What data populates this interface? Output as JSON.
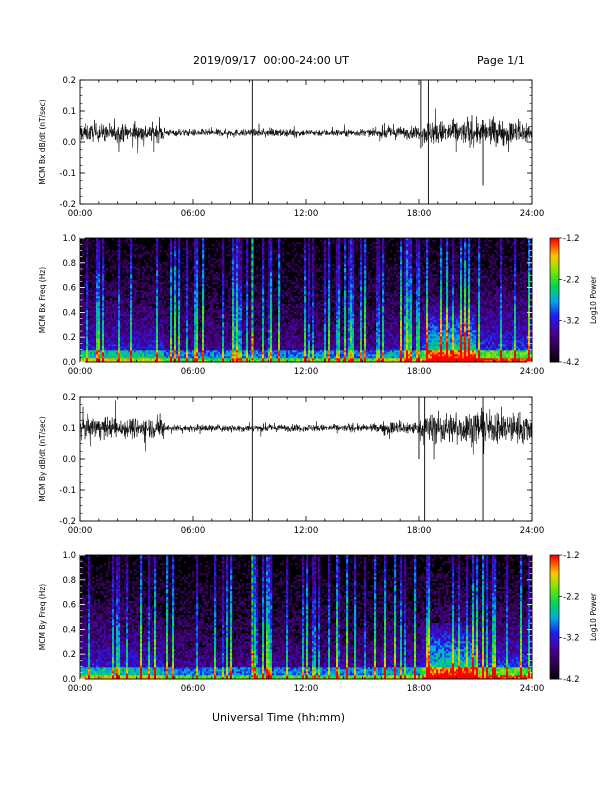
{
  "header": {
    "title": "2019/09/17  00:00-24:00 UT",
    "page": "Page 1/1"
  },
  "xaxis_title": "Universal Time (hh:mm)",
  "chart_data": [
    {
      "type": "line",
      "ylabel": "MCM Bx dB/dt (nT/sec)",
      "xlim": [
        "00:00",
        "24:00"
      ],
      "xticks": [
        "00:00",
        "06:00",
        "12:00",
        "18:00",
        "24:00"
      ],
      "ylim": [
        -0.2,
        0.2
      ],
      "yticks": [
        "-0.2",
        "-0.1",
        "0.0",
        "0.1",
        "0.2"
      ],
      "baseline": 0.03,
      "activity": [
        {
          "start_h": 0,
          "end_h": 4.5,
          "amplitude": 0.05
        },
        {
          "start_h": 4.5,
          "end_h": 16,
          "amplitude": 0.02
        },
        {
          "start_h": 16,
          "end_h": 18.2,
          "amplitude": 0.035
        },
        {
          "start_h": 18.2,
          "end_h": 24,
          "amplitude": 0.07
        }
      ],
      "spikes": [
        {
          "t_h": 9.15,
          "min": -0.2,
          "max": 0.2
        },
        {
          "t_h": 18.1,
          "min": -0.02,
          "max": 0.2
        },
        {
          "t_h": 18.5,
          "min": -0.2,
          "max": 0.2
        },
        {
          "t_h": 21.4,
          "min": -0.14,
          "max": 0.07
        }
      ]
    },
    {
      "type": "heatmap",
      "ylabel": "MCM Bx Freq (Hz)",
      "xlim": [
        "00:00",
        "24:00"
      ],
      "xticks": [
        "00:00",
        "06:00",
        "12:00",
        "18:00",
        "24:00"
      ],
      "ylim": [
        0.0,
        1.0
      ],
      "yticks": [
        "0.0",
        "0.2",
        "0.4",
        "0.6",
        "0.8",
        "1.0"
      ],
      "colorbar": {
        "label": "Log10 Power",
        "range": [
          -4.2,
          -1.2
        ],
        "ticks": [
          "-1.2",
          "-2.2",
          "-3.2",
          "-4.2"
        ]
      },
      "features": [
        {
          "description_value": "broadband enhancement",
          "t_h": 9.15,
          "power": -1.2
        },
        {
          "description_value": "low-frequency enhancement",
          "start_h": 18.5,
          "end_h": 21,
          "max_freq": 0.45,
          "power": -2.6
        }
      ]
    },
    {
      "type": "line",
      "ylabel": "MCM By dB/dt (nT/sec)",
      "xlim": [
        "00:00",
        "24:00"
      ],
      "xticks": [
        "00:00",
        "06:00",
        "12:00",
        "18:00",
        "24:00"
      ],
      "ylim": [
        -0.2,
        0.2
      ],
      "yticks": [
        "-0.2",
        "-0.1",
        "0.0",
        "0.1",
        "0.2"
      ],
      "baseline": 0.1,
      "activity": [
        {
          "start_h": 0,
          "end_h": 4.5,
          "amplitude": 0.06
        },
        {
          "start_h": 4.5,
          "end_h": 16,
          "amplitude": 0.02
        },
        {
          "start_h": 16,
          "end_h": 18.2,
          "amplitude": 0.04
        },
        {
          "start_h": 18.2,
          "end_h": 24,
          "amplitude": 0.09
        }
      ],
      "spikes": [
        {
          "t_h": 9.15,
          "min": -0.2,
          "max": 0.2
        },
        {
          "t_h": 18.0,
          "min": 0.0,
          "max": 0.2
        },
        {
          "t_h": 18.3,
          "min": -0.2,
          "max": 0.2
        },
        {
          "t_h": 21.4,
          "min": -0.2,
          "max": 0.2
        }
      ]
    },
    {
      "type": "heatmap",
      "ylabel": "MCM By Freq (Hz)",
      "xlim": [
        "00:00",
        "24:00"
      ],
      "xticks": [
        "00:00",
        "06:00",
        "12:00",
        "18:00",
        "24:00"
      ],
      "ylim": [
        0.0,
        1.0
      ],
      "yticks": [
        "0.0",
        "0.2",
        "0.4",
        "0.6",
        "0.8",
        "1.0"
      ],
      "colorbar": {
        "label": "Log10 Power",
        "range": [
          -4.2,
          -1.2
        ],
        "ticks": [
          "-1.2",
          "-2.2",
          "-3.2",
          "-4.2"
        ]
      },
      "features": [
        {
          "description_value": "broadband enhancement",
          "t_h": 9.15,
          "power": -1.2
        },
        {
          "description_value": "low-frequency enhancement",
          "start_h": 18.5,
          "end_h": 21,
          "max_freq": 0.45,
          "power": -2.6
        }
      ]
    }
  ]
}
